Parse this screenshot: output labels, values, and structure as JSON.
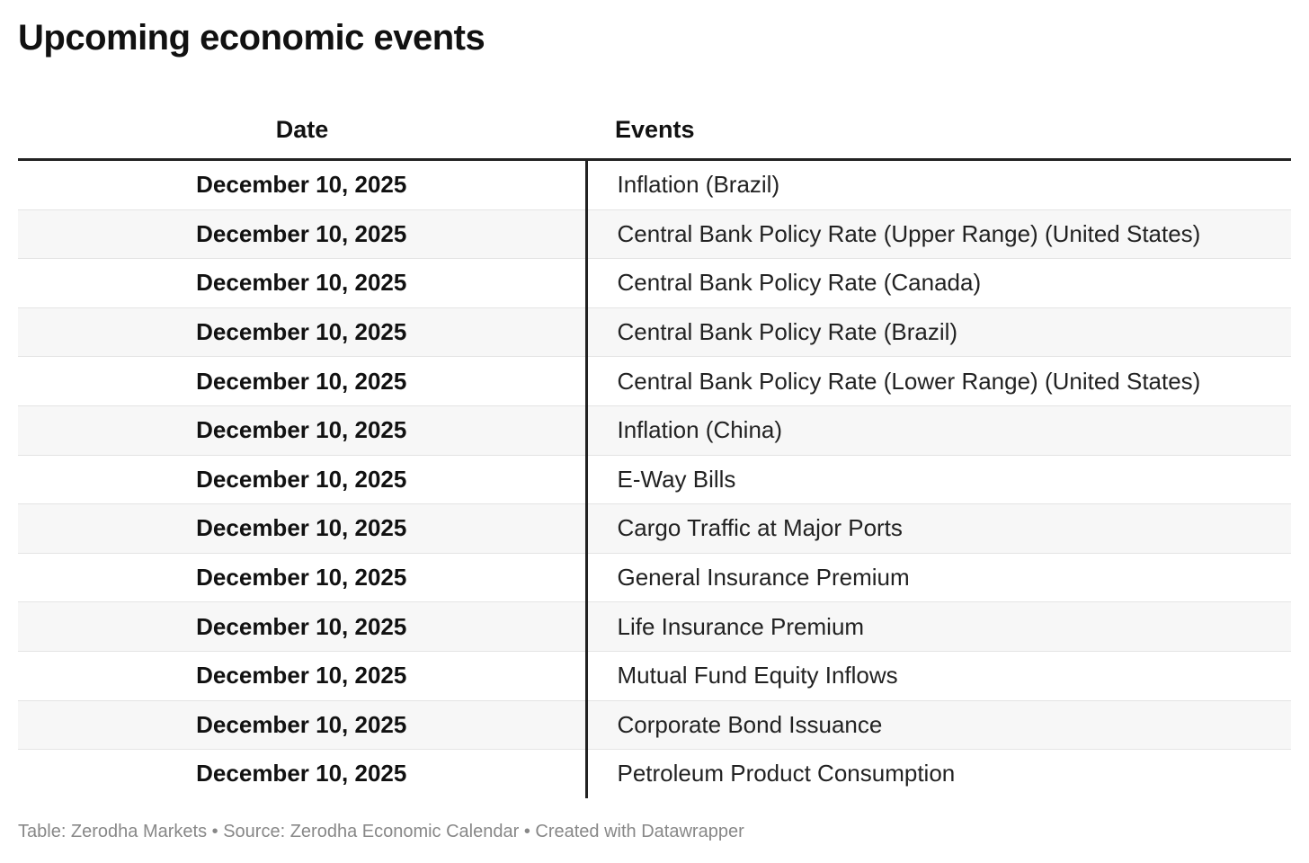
{
  "title": "Upcoming economic events",
  "table": {
    "headers": [
      "Date",
      "Events"
    ],
    "rows": [
      {
        "date": "December 10, 2025",
        "event": "Inflation (Brazil)"
      },
      {
        "date": "December 10, 2025",
        "event": "Central Bank Policy Rate (Upper Range) (United States)"
      },
      {
        "date": "December 10, 2025",
        "event": "Central Bank Policy Rate (Canada)"
      },
      {
        "date": "December 10, 2025",
        "event": "Central Bank Policy Rate (Brazil)"
      },
      {
        "date": "December 10, 2025",
        "event": "Central Bank Policy Rate (Lower Range) (United States)"
      },
      {
        "date": "December 10, 2025",
        "event": "Inflation (China)"
      },
      {
        "date": "December 10, 2025",
        "event": "E-Way Bills"
      },
      {
        "date": "December 10, 2025",
        "event": "Cargo Traffic at Major Ports"
      },
      {
        "date": "December 10, 2025",
        "event": "General Insurance Premium"
      },
      {
        "date": "December 10, 2025",
        "event": "Life Insurance Premium"
      },
      {
        "date": "December 10, 2025",
        "event": "Mutual Fund Equity Inflows"
      },
      {
        "date": "December 10, 2025",
        "event": "Corporate Bond Issuance"
      },
      {
        "date": "December 10, 2025",
        "event": "Petroleum Product Consumption"
      }
    ]
  },
  "footer": "Table: Zerodha Markets • Source: Zerodha Economic Calendar • Created with Datawrapper"
}
